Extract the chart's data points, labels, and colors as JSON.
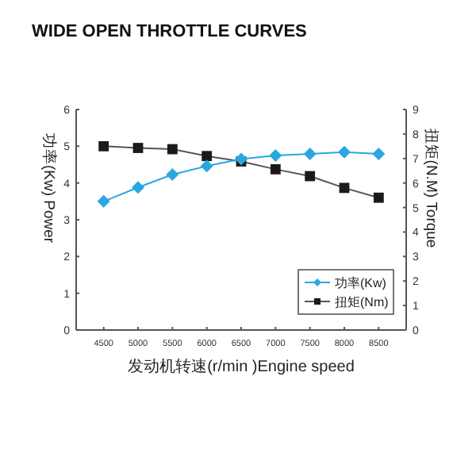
{
  "chart_data": {
    "type": "line",
    "title": "WIDE OPEN THROTTLE CURVES",
    "xlabel": "发动机转速(r/min )Engine speed",
    "ylabel": "功率(Kw) Power",
    "y2label": "扭矩(N.M) Torque",
    "x": [
      4500,
      5000,
      5500,
      6000,
      6500,
      7000,
      7500,
      8000,
      8500
    ],
    "xlim": [
      4100,
      8900
    ],
    "xticks": [
      4500,
      5000,
      5500,
      6000,
      6500,
      7000,
      7500,
      8000,
      8500
    ],
    "ylim": [
      0,
      6
    ],
    "yticks": [
      0,
      1,
      2,
      3,
      4,
      5,
      6
    ],
    "y2lim": [
      0,
      9
    ],
    "y2ticks": [
      0,
      1,
      2,
      3,
      4,
      5,
      6,
      7,
      8,
      9
    ],
    "series": [
      {
        "name": "功率(Kw)",
        "color": "#29a8e0",
        "marker": "diamond",
        "values": [
          3.5,
          3.88,
          4.23,
          4.46,
          4.65,
          4.75,
          4.79,
          4.84,
          4.79
        ]
      },
      {
        "name": "扭矩(Nm)",
        "color": "#1a1a1a",
        "marker": "square",
        "axis": "y2",
        "values": [
          7.5,
          7.43,
          7.38,
          7.1,
          6.88,
          6.56,
          6.28,
          5.8,
          5.4
        ]
      }
    ],
    "grid": false,
    "legend": "bottom right",
    "line_style": "solid"
  }
}
